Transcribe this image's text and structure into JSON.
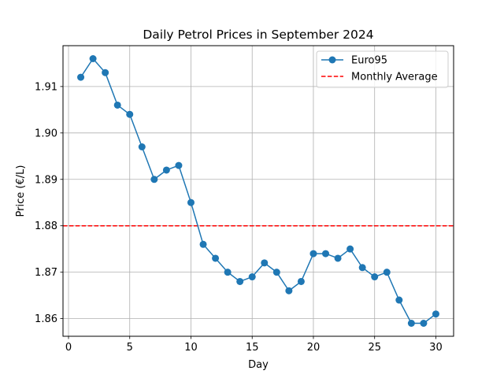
{
  "chart_data": {
    "type": "line",
    "title": "Daily Petrol Prices in September 2024",
    "xlabel": "Day",
    "ylabel": "Price (€/L)",
    "xlim": [
      -0.45,
      31.45
    ],
    "ylim": [
      1.8562,
      1.9188
    ],
    "x_ticks": [
      0,
      5,
      10,
      15,
      20,
      25,
      30
    ],
    "y_ticks": [
      1.86,
      1.87,
      1.88,
      1.89,
      1.9,
      1.91
    ],
    "y_tick_labels": [
      "1.86",
      "1.87",
      "1.88",
      "1.89",
      "1.90",
      "1.91"
    ],
    "grid": true,
    "legend_position": "top-right",
    "series": [
      {
        "name": "Euro95",
        "color": "#1f77b4",
        "x": [
          1,
          2,
          3,
          4,
          5,
          6,
          7,
          8,
          9,
          10,
          11,
          12,
          13,
          14,
          15,
          16,
          17,
          18,
          19,
          20,
          21,
          22,
          23,
          24,
          25,
          26,
          27,
          28,
          29,
          30
        ],
        "values": [
          1.912,
          1.916,
          1.913,
          1.906,
          1.904,
          1.897,
          1.89,
          1.892,
          1.893,
          1.885,
          1.876,
          1.873,
          1.87,
          1.868,
          1.869,
          1.872,
          1.87,
          1.866,
          1.868,
          1.874,
          1.874,
          1.873,
          1.875,
          1.871,
          1.869,
          1.87,
          1.864,
          1.859,
          1.859,
          1.861
        ]
      }
    ],
    "reference_lines": [
      {
        "name": "Monthly Average",
        "value": 1.88,
        "color": "#ff0000",
        "style": "dashed"
      }
    ]
  }
}
